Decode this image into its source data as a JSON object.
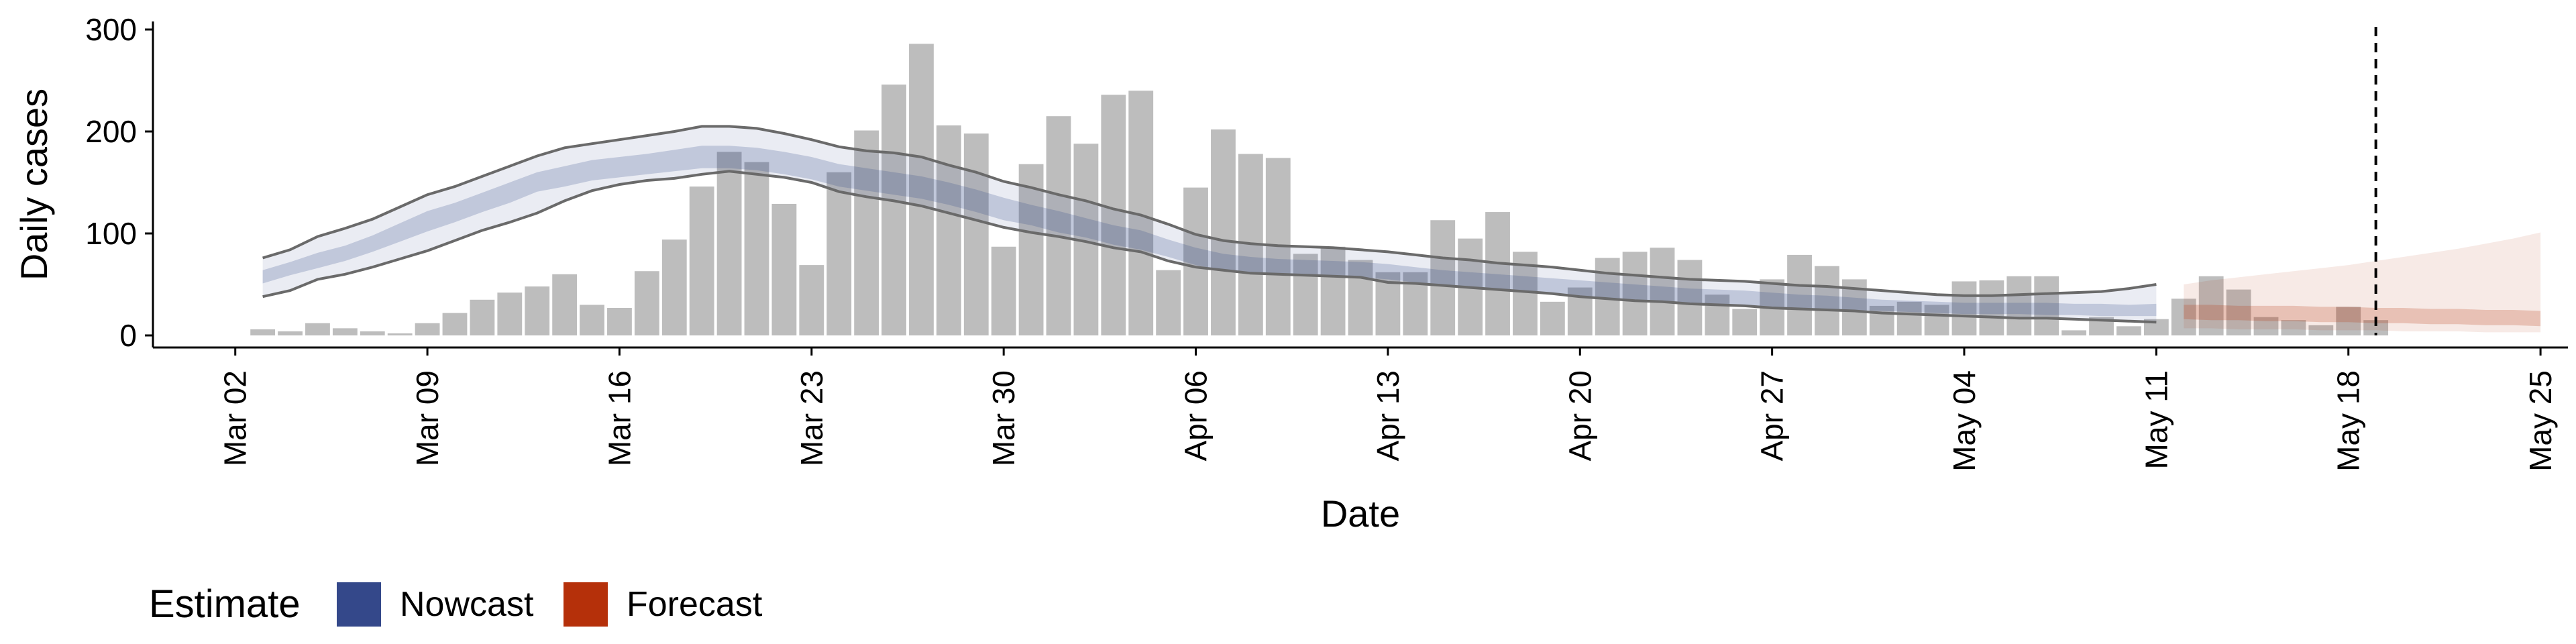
{
  "chart_data": {
    "type": "bar",
    "title": "",
    "xlabel": "Date",
    "ylabel": "Daily cases",
    "ylim": [
      0,
      300
    ],
    "xlim": [
      "2020-02-28",
      "2020-05-26"
    ],
    "grid": false,
    "y_ticks": [
      0,
      100,
      200,
      300
    ],
    "x_tick_dates": [
      "2020-03-02",
      "2020-03-09",
      "2020-03-16",
      "2020-03-23",
      "2020-03-30",
      "2020-04-06",
      "2020-04-13",
      "2020-04-20",
      "2020-04-27",
      "2020-05-04",
      "2020-05-11",
      "2020-05-18",
      "2020-05-25"
    ],
    "x_tick_labels": [
      "Mar 02",
      "Mar 09",
      "Mar 16",
      "Mar 23",
      "Mar 30",
      "Apr 06",
      "Apr 13",
      "Apr 20",
      "Apr 27",
      "May 04",
      "May 11",
      "May 18",
      "May 25"
    ],
    "vline_date": "2020-05-19",
    "bar_color": "#bdbdbd",
    "cases": {
      "dates": [
        "2020-03-03",
        "2020-03-04",
        "2020-03-05",
        "2020-03-06",
        "2020-03-07",
        "2020-03-08",
        "2020-03-09",
        "2020-03-10",
        "2020-03-11",
        "2020-03-12",
        "2020-03-13",
        "2020-03-14",
        "2020-03-15",
        "2020-03-16",
        "2020-03-17",
        "2020-03-18",
        "2020-03-19",
        "2020-03-20",
        "2020-03-21",
        "2020-03-22",
        "2020-03-23",
        "2020-03-24",
        "2020-03-25",
        "2020-03-26",
        "2020-03-27",
        "2020-03-28",
        "2020-03-29",
        "2020-03-30",
        "2020-03-31",
        "2020-04-01",
        "2020-04-02",
        "2020-04-03",
        "2020-04-04",
        "2020-04-05",
        "2020-04-06",
        "2020-04-07",
        "2020-04-08",
        "2020-04-09",
        "2020-04-10",
        "2020-04-11",
        "2020-04-12",
        "2020-04-13",
        "2020-04-14",
        "2020-04-15",
        "2020-04-16",
        "2020-04-17",
        "2020-04-18",
        "2020-04-19",
        "2020-04-20",
        "2020-04-21",
        "2020-04-22",
        "2020-04-23",
        "2020-04-24",
        "2020-04-25",
        "2020-04-26",
        "2020-04-27",
        "2020-04-28",
        "2020-04-29",
        "2020-04-30",
        "2020-05-01",
        "2020-05-02",
        "2020-05-03",
        "2020-05-04",
        "2020-05-05",
        "2020-05-06",
        "2020-05-07",
        "2020-05-08",
        "2020-05-09",
        "2020-05-10",
        "2020-05-11",
        "2020-05-12",
        "2020-05-13",
        "2020-05-14",
        "2020-05-15",
        "2020-05-16",
        "2020-05-17",
        "2020-05-18",
        "2020-05-19"
      ],
      "values": [
        6,
        4,
        12,
        7,
        4,
        2,
        12,
        22,
        35,
        42,
        48,
        60,
        30,
        27,
        63,
        94,
        146,
        180,
        170,
        129,
        69,
        160,
        201,
        246,
        286,
        206,
        198,
        87,
        168,
        215,
        188,
        236,
        240,
        64,
        145,
        202,
        178,
        174,
        80,
        87,
        74,
        62,
        62,
        113,
        95,
        121,
        82,
        33,
        47,
        76,
        82,
        86,
        74,
        40,
        26,
        55,
        79,
        68,
        55,
        29,
        33,
        30,
        53,
        54,
        58,
        58,
        5,
        18,
        9,
        16,
        36,
        58,
        45,
        18,
        15,
        10,
        28,
        15
      ]
    },
    "series": [
      {
        "name": "Nowcast",
        "color": "#34488a",
        "dates": [
          "2020-03-03",
          "2020-03-04",
          "2020-03-05",
          "2020-03-06",
          "2020-03-07",
          "2020-03-08",
          "2020-03-09",
          "2020-03-10",
          "2020-03-11",
          "2020-03-12",
          "2020-03-13",
          "2020-03-14",
          "2020-03-15",
          "2020-03-16",
          "2020-03-17",
          "2020-03-18",
          "2020-03-19",
          "2020-03-20",
          "2020-03-21",
          "2020-03-22",
          "2020-03-23",
          "2020-03-24",
          "2020-03-25",
          "2020-03-26",
          "2020-03-27",
          "2020-03-28",
          "2020-03-29",
          "2020-03-30",
          "2020-03-31",
          "2020-04-01",
          "2020-04-02",
          "2020-04-03",
          "2020-04-04",
          "2020-04-05",
          "2020-04-06",
          "2020-04-07",
          "2020-04-08",
          "2020-04-09",
          "2020-04-10",
          "2020-04-11",
          "2020-04-12",
          "2020-04-13",
          "2020-04-14",
          "2020-04-15",
          "2020-04-16",
          "2020-04-17",
          "2020-04-18",
          "2020-04-19",
          "2020-04-20",
          "2020-04-21",
          "2020-04-22",
          "2020-04-23",
          "2020-04-24",
          "2020-04-25",
          "2020-04-26",
          "2020-04-27",
          "2020-04-28",
          "2020-04-29",
          "2020-04-30",
          "2020-05-01",
          "2020-05-02",
          "2020-05-03",
          "2020-05-04",
          "2020-05-05",
          "2020-05-06",
          "2020-05-07",
          "2020-05-08",
          "2020-05-09",
          "2020-05-10",
          "2020-05-11"
        ],
        "upper90": [
          76,
          84,
          97,
          105,
          114,
          126,
          138,
          146,
          156,
          166,
          176,
          184,
          188,
          192,
          196,
          200,
          205,
          205,
          203,
          198,
          192,
          185,
          181,
          179,
          175,
          167,
          160,
          151,
          145,
          138,
          132,
          124,
          118,
          109,
          99,
          93,
          90,
          88,
          87,
          86,
          84,
          82,
          79,
          76,
          74,
          71,
          69,
          67,
          64,
          61,
          59,
          57,
          55,
          54,
          53,
          51,
          49,
          48,
          46,
          44,
          42,
          40,
          39,
          39,
          40,
          41,
          42,
          43,
          46,
          50
        ],
        "upper50": [
          64,
          72,
          81,
          88,
          98,
          110,
          122,
          130,
          140,
          150,
          160,
          166,
          172,
          175,
          178,
          182,
          186,
          186,
          184,
          180,
          175,
          168,
          164,
          160,
          156,
          150,
          143,
          135,
          128,
          122,
          115,
          108,
          103,
          94,
          86,
          80,
          77,
          75,
          74,
          73,
          72,
          70,
          67,
          64,
          62,
          60,
          58,
          56,
          54,
          52,
          50,
          48,
          46,
          45,
          44,
          42,
          40,
          39,
          37,
          35,
          34,
          33,
          32,
          32,
          32,
          32,
          31,
          31,
          30,
          31
        ],
        "median": [
          58,
          66,
          74,
          81,
          90,
          101,
          112,
          121,
          131,
          140,
          151,
          156,
          162,
          165,
          168,
          171,
          175,
          175,
          173,
          169,
          164,
          157,
          153,
          149,
          145,
          139,
          132,
          124,
          118,
          111,
          105,
          98,
          93,
          85,
          77,
          72,
          69,
          67,
          66,
          65,
          64,
          62,
          59,
          56,
          54,
          52,
          50,
          48,
          46,
          44,
          42,
          41,
          39,
          38,
          37,
          35,
          34,
          33,
          31,
          30,
          29,
          28,
          27,
          27,
          26,
          26,
          26,
          25,
          25,
          25
        ],
        "lower50": [
          51,
          59,
          66,
          73,
          82,
          92,
          102,
          111,
          121,
          130,
          141,
          146,
          152,
          155,
          158,
          161,
          164,
          164,
          162,
          158,
          153,
          146,
          142,
          138,
          134,
          128,
          121,
          113,
          108,
          101,
          96,
          89,
          84,
          77,
          69,
          64,
          61,
          60,
          59,
          58,
          57,
          55,
          52,
          49,
          47,
          45,
          43,
          41,
          39,
          37,
          35,
          34,
          32,
          31,
          30,
          28,
          27,
          26,
          25,
          24,
          23,
          22,
          21,
          21,
          21,
          20,
          20,
          19,
          19,
          19
        ],
        "lower90": [
          38,
          44,
          55,
          60,
          67,
          75,
          83,
          93,
          103,
          111,
          120,
          132,
          142,
          148,
          152,
          154,
          158,
          161,
          158,
          155,
          150,
          141,
          136,
          132,
          127,
          120,
          113,
          106,
          101,
          97,
          92,
          86,
          82,
          73,
          67,
          64,
          61,
          60,
          59,
          58,
          57,
          52,
          51,
          49,
          47,
          45,
          43,
          41,
          38,
          36,
          34,
          33,
          31,
          30,
          29,
          27,
          26,
          25,
          24,
          22,
          21,
          20,
          19,
          18,
          17,
          17,
          16,
          15,
          14,
          13
        ]
      },
      {
        "name": "Forecast",
        "color": "#b5300a",
        "dates": [
          "2020-05-12",
          "2020-05-13",
          "2020-05-14",
          "2020-05-15",
          "2020-05-16",
          "2020-05-17",
          "2020-05-18",
          "2020-05-19",
          "2020-05-20",
          "2020-05-21",
          "2020-05-22",
          "2020-05-23",
          "2020-05-24",
          "2020-05-25"
        ],
        "upper90": [
          50,
          54,
          57,
          60,
          63,
          66,
          69,
          73,
          77,
          81,
          85,
          90,
          95,
          101
        ],
        "upper50": [
          30,
          30,
          29,
          29,
          29,
          28,
          28,
          27,
          27,
          26,
          26,
          25,
          25,
          24
        ],
        "median": [
          22,
          22,
          21,
          21,
          20,
          20,
          19,
          19,
          18,
          18,
          17,
          17,
          16,
          16
        ],
        "lower50": [
          16,
          15,
          15,
          14,
          14,
          13,
          13,
          12,
          12,
          11,
          11,
          10,
          10,
          9
        ],
        "lower90": [
          7,
          7,
          6,
          6,
          6,
          5,
          5,
          5,
          4,
          4,
          4,
          3,
          3,
          3
        ]
      }
    ],
    "legend": {
      "title": "Estimate",
      "placement": "bottom-left",
      "items": [
        {
          "label": "Nowcast",
          "color": "#34488a"
        },
        {
          "label": "Forecast",
          "color": "#b5300a"
        }
      ]
    }
  }
}
